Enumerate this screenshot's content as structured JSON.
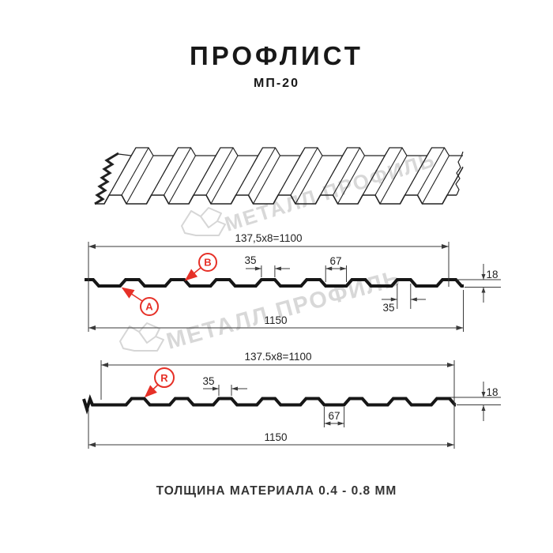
{
  "header": {
    "title": "ПРОФЛИСТ",
    "subtitle": "МП-20"
  },
  "watermark": {
    "text": "МЕТАЛЛ ПРОФИЛЬ",
    "logo_icon": "metall-profil-logo",
    "color": "#d8d8d8"
  },
  "profile_a": {
    "dim_useful_width": "137,5x8=1100",
    "dim_rib_top_width": "35",
    "dim_gap_width": "67",
    "dim_height": "18",
    "dim_rib_bottom_width": "35",
    "dim_full_width": "1150",
    "callout_a": "A",
    "callout_b": "B"
  },
  "profile_r": {
    "dim_useful_width": "137.5x8=1100",
    "dim_rib_width": "35",
    "dim_gap_width": "67",
    "dim_height": "18",
    "dim_full_width": "1150",
    "callout_r": "R"
  },
  "footer": {
    "material_note": "ТОЛЩИНА МАТЕРИАЛА 0.4 - 0.8 ММ"
  },
  "colors": {
    "ink": "#161616",
    "dim_line": "#3a3a3a",
    "accent_red": "#e63027",
    "watermark": "#d8d8d8"
  }
}
